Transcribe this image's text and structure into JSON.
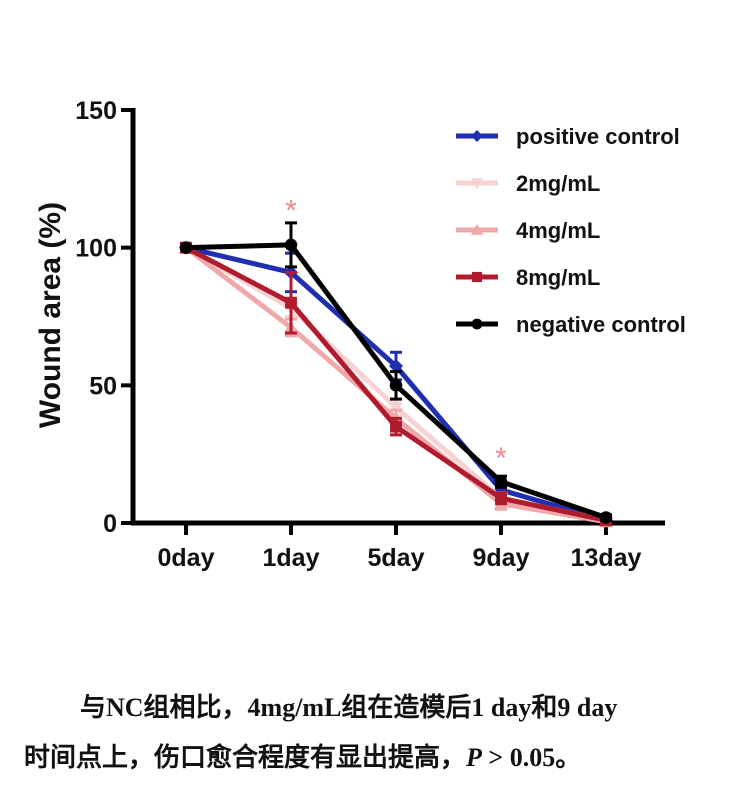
{
  "chart_data": {
    "type": "line",
    "title": "",
    "xlabel": "",
    "ylabel": "Wound area (%)",
    "ylim": [
      0,
      150
    ],
    "yticks": [
      0,
      50,
      100,
      150
    ],
    "categories": [
      "0day",
      "1day",
      "5day",
      "9day",
      "13day"
    ],
    "legend_position": "top-right",
    "series": [
      {
        "name": "positive control",
        "color": "#1f2fb0",
        "marker": "diamond",
        "values": [
          100,
          91,
          57,
          12,
          1
        ],
        "errors": [
          0,
          7,
          5,
          2,
          1
        ]
      },
      {
        "name": "2mg/mL",
        "color": "#f7d2d2",
        "marker": "triangle-down",
        "values": [
          100,
          78,
          42,
          9,
          1
        ],
        "errors": [
          0,
          3,
          3,
          2,
          1
        ]
      },
      {
        "name": "4mg/mL",
        "color": "#f0a8a8",
        "marker": "triangle-up",
        "values": [
          100,
          71,
          38,
          7,
          0.5
        ],
        "errors": [
          0,
          3,
          3,
          2,
          1
        ]
      },
      {
        "name": "8mg/mL",
        "color": "#b01c2e",
        "marker": "square",
        "values": [
          100,
          80,
          35,
          9,
          1
        ],
        "errors": [
          0,
          11,
          3,
          2,
          1
        ]
      },
      {
        "name": "negative control",
        "color": "#000000",
        "marker": "circle",
        "values": [
          100,
          101,
          50,
          15,
          2
        ],
        "errors": [
          0,
          8,
          5,
          2,
          1
        ]
      }
    ],
    "annotations": [
      {
        "text": "*",
        "category": "1day",
        "y": 115,
        "color": "#f08a8a"
      },
      {
        "text": "*",
        "category": "9day",
        "y": 25,
        "color": "#f08a8a"
      }
    ],
    "grid": false
  },
  "caption": {
    "line1": "与NC组相比，4mg/mL组在造模后1 day和9 day",
    "line2_prefix": "时间点上，伤口愈合程度有显出提高，",
    "line2_p": "P",
    "line2_suffix": " > 0.05。"
  }
}
